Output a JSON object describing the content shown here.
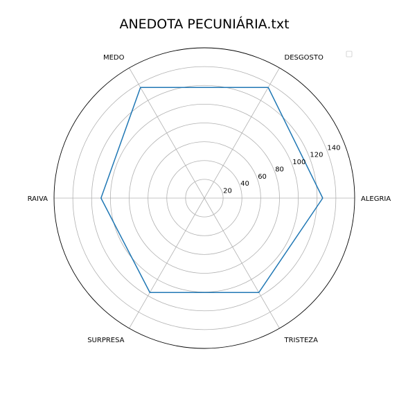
{
  "chart_data": {
    "type": "radar",
    "title": "ANEDOTA PECUNIÁRIA.txt",
    "categories": [
      "ALEGRIA",
      "DESGOSTO",
      "MEDO",
      "RAIVA",
      "SURPRESA",
      "TRISTEZA"
    ],
    "series": [
      {
        "values": [
          126,
          136,
          136,
          110,
          116,
          116
        ],
        "color": "#1f77b4"
      }
    ],
    "r_ticks": [
      20,
      40,
      60,
      80,
      100,
      120,
      140
    ],
    "rlim": [
      0,
      160
    ],
    "grid": true,
    "legend": "top-right"
  }
}
